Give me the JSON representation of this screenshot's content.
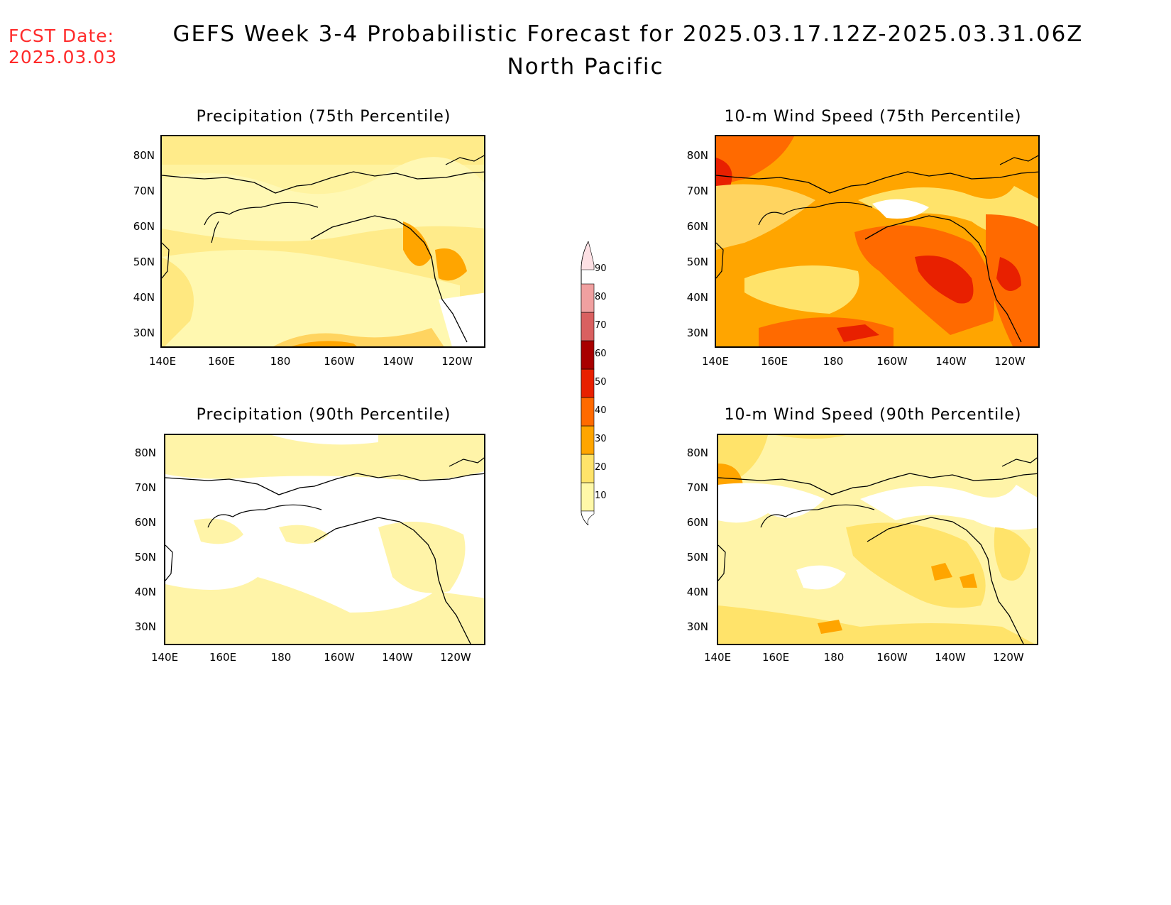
{
  "header": {
    "fcst_label": "FCST Date:",
    "fcst_date": "2025.03.03",
    "title": "GEFS Week 3-4 Probabilistic Forecast for 2025.03.17.12Z-2025.03.31.06Z",
    "subtitle": "North Pacific"
  },
  "axes": {
    "lat_labels": [
      "80N",
      "70N",
      "60N",
      "50N",
      "40N",
      "30N"
    ],
    "lon_labels": [
      "140E",
      "160E",
      "180",
      "160W",
      "140W",
      "120W"
    ]
  },
  "panels": [
    {
      "id": "precip75",
      "title": "Precipitation (75th Percentile)"
    },
    {
      "id": "wind75",
      "title": "10-m Wind Speed (75th Percentile)"
    },
    {
      "id": "precip90",
      "title": "Precipitation (90th Percentile)"
    },
    {
      "id": "wind90",
      "title": "10-m Wind Speed (90th Percentile)"
    }
  ],
  "colorbar": {
    "levels": [
      "10",
      "20",
      "30",
      "40",
      "50",
      "60",
      "70",
      "80",
      "90"
    ],
    "colors": [
      "#fff8a8",
      "#ffe36a",
      "#ffa500",
      "#ff6a00",
      "#e82000",
      "#a80000",
      "#d96060",
      "#f0a0a0",
      "#fde0e4"
    ]
  }
}
